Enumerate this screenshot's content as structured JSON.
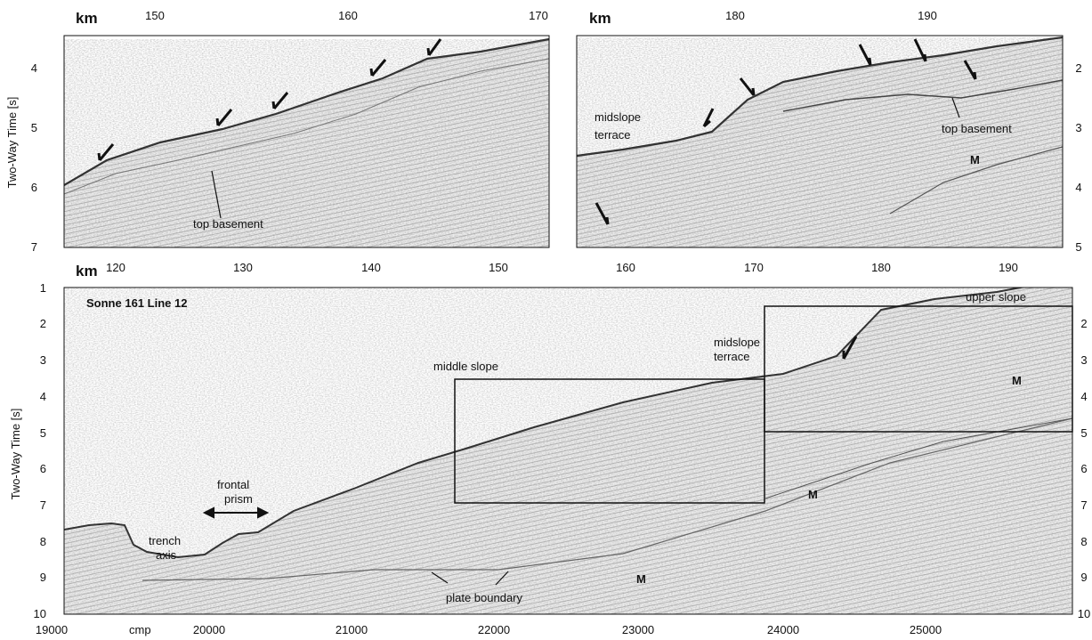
{
  "figure": {
    "panels": {
      "top_left": {
        "km_unit": "km",
        "km_ticks": [
          "150",
          "160",
          "170"
        ],
        "time_ticks": [
          "4",
          "5",
          "6",
          "7"
        ],
        "y_axis_title": "Two-Way Time [s]",
        "annotations": {
          "top_basement": "top basement"
        }
      },
      "top_right": {
        "km_unit": "km",
        "km_ticks": [
          "180",
          "190"
        ],
        "time_ticks_right": [
          "2",
          "3",
          "4",
          "5"
        ],
        "annotations": {
          "midslope_terrace_1": "midslope",
          "midslope_terrace_2": "terrace",
          "top_basement": "top basement",
          "multiple": "M"
        }
      },
      "bottom": {
        "km_unit": "km",
        "km_ticks": [
          "120",
          "130",
          "140",
          "150",
          "160",
          "170",
          "180",
          "190"
        ],
        "time_ticks": [
          "1",
          "2",
          "3",
          "4",
          "5",
          "6",
          "7",
          "8",
          "9",
          "10"
        ],
        "time_ticks_right": [
          "2",
          "3",
          "4",
          "5",
          "6",
          "7",
          "8",
          "9",
          "10"
        ],
        "y_axis_title": "Two-Way Time [s]",
        "cmp_label": "cmp",
        "cmp_ticks": [
          "19000",
          "20000",
          "21000",
          "22000",
          "23000",
          "24000",
          "25000"
        ],
        "title": "Sonne 161 Line 12",
        "annotations": {
          "upper_slope": "upper slope",
          "midslope_1": "midslope",
          "midslope_2": "terrace",
          "middle_slope": "middle slope",
          "frontal_1": "frontal",
          "frontal_2": "prism",
          "trench_1": "trench",
          "trench_2": "axis",
          "plate_boundary": "plate boundary",
          "m1": "M",
          "m2": "M",
          "m3": "M"
        }
      }
    },
    "colors": {
      "ink": "#111111",
      "seismic": "#555555",
      "background": "#ffffff"
    }
  }
}
